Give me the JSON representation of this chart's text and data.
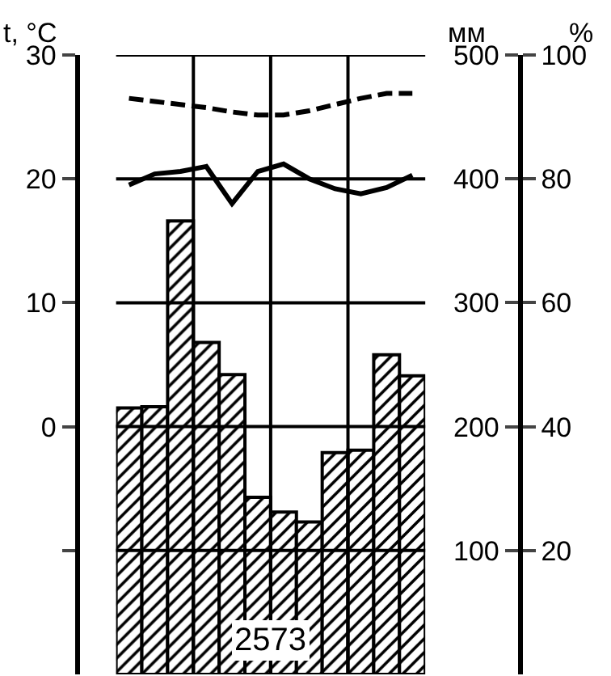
{
  "chart_data": {
    "type": "bar",
    "ylabel": "t, °C",
    "y2label": "мм",
    "y3label": "%",
    "categories": [
      null,
      null,
      null,
      null,
      null,
      null,
      null,
      null,
      null,
      null,
      null,
      null
    ],
    "series": [
      {
        "axis": "y2",
        "color": "#000000",
        "values": [
          215,
          216,
          366,
          268,
          242,
          143,
          131,
          123,
          179,
          181,
          258,
          241
        ]
      },
      {
        "type": "line",
        "axis": "y",
        "color": "#000000",
        "line_style": "solid",
        "values": [
          19.5,
          20.4,
          20.6,
          21.0,
          18.0,
          20.6,
          21.2,
          20.0,
          19.2,
          18.8,
          19.3,
          20.3
        ]
      },
      {
        "type": "line",
        "axis": "y3",
        "color": "#000000",
        "line_style": "dashed",
        "values": [
          93,
          92.5,
          92,
          91.5,
          90.8,
          90.3,
          90.3,
          91,
          92,
          93,
          93.8,
          93.8
        ]
      }
    ],
    "ylim": [
      -20,
      30
    ],
    "yticks": [
      30,
      20,
      10,
      0,
      {
        "value": -10,
        "label": null
      }
    ],
    "y2lim": [
      0,
      500
    ],
    "y2ticks": [
      500,
      400,
      300,
      200,
      100
    ],
    "y3lim": [
      0,
      100
    ],
    "y3ticks": [
      100,
      80,
      60,
      40,
      20
    ],
    "grid": "y",
    "legend": false,
    "marker": "none",
    "annotations": [
      "2573"
    ]
  }
}
